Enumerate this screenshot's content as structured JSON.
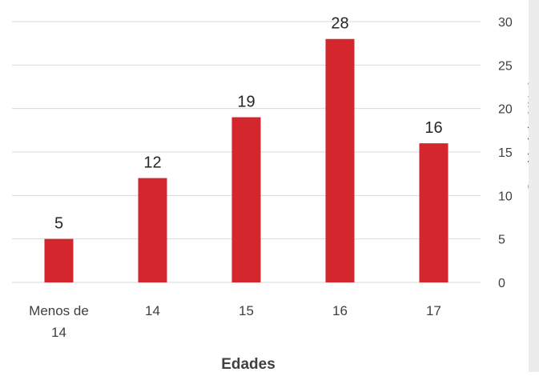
{
  "chart_data": {
    "type": "bar",
    "categories": [
      "Menos de 14",
      "14",
      "15",
      "16",
      "17"
    ],
    "category_lines": [
      [
        "Menos de",
        "14"
      ],
      [
        "14"
      ],
      [
        "15"
      ],
      [
        "16"
      ],
      [
        "17"
      ]
    ],
    "values": [
      5,
      12,
      19,
      28,
      16
    ],
    "xlabel": "Edades",
    "ylabel": "Cantidad de NNyAs",
    "ylim": [
      0,
      30
    ],
    "yticks": [
      0,
      5,
      10,
      15,
      20,
      25,
      30
    ],
    "y_axis_side": "right",
    "grid": true,
    "legend": false,
    "bar_color": "#d3262d"
  }
}
